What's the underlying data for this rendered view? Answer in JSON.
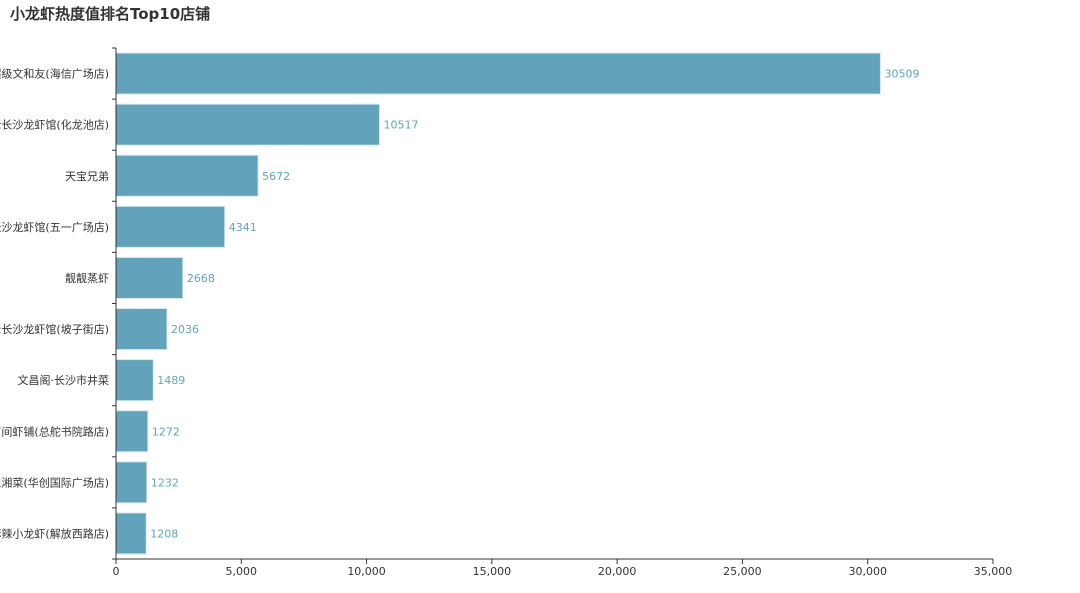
{
  "chart_data": {
    "type": "bar",
    "orientation": "horizontal",
    "title": "小龙虾热度值排名Top10店铺",
    "categories": [
      "超级文和友(海信广场店)",
      "老长沙龙虾馆(化龙池店)",
      "天宝兄弟",
      "长沙龙虾馆(五一广场店)",
      "靓靓蒸虾",
      "老长沙龙虾馆(坡子街店)",
      "文昌阁·长沙市井菜",
      "有间虾铺(总舵书院路店)",
      "担湘菜(华创国际广场店)",
      "麻辣小龙虾(解放西路店)"
    ],
    "values": [
      30509,
      10517,
      5672,
      4341,
      2668,
      2036,
      1489,
      1272,
      1232,
      1208
    ],
    "xlim": [
      0,
      35000
    ],
    "xticks": [
      0,
      5000,
      10000,
      15000,
      20000,
      25000,
      30000,
      35000
    ],
    "xtick_labels": [
      "0",
      "5,000",
      "10,000",
      "15,000",
      "20,000",
      "25,000",
      "30,000",
      "35,000"
    ],
    "grid": false,
    "bar_color": "#62a3bb",
    "label_color": "#62a3bb"
  }
}
